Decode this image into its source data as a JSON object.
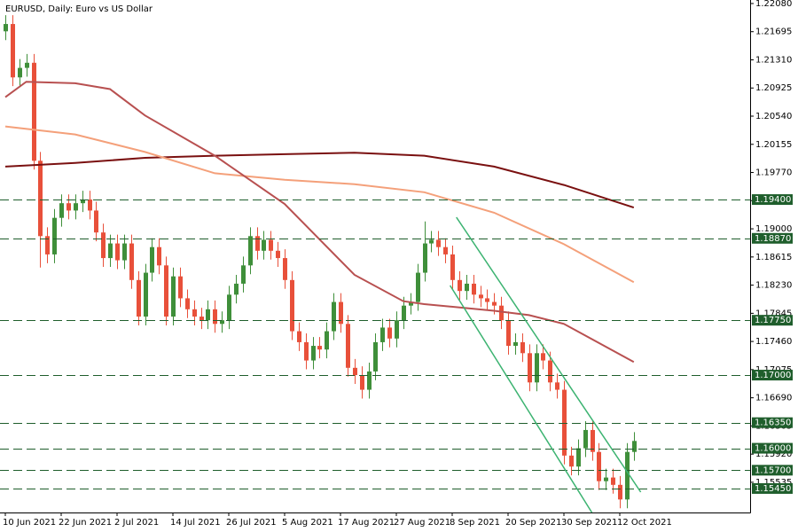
{
  "chart_data": {
    "type": "candlestick",
    "title": "EURUSD, Daily:  Euro vs US Dollar",
    "categories": [
      "10 Jun 2021",
      null,
      null,
      null,
      null,
      null,
      null,
      null,
      "22 Jun 2021",
      null,
      null,
      null,
      null,
      null,
      null,
      null,
      "2 Jul 2021",
      null,
      null,
      null,
      null,
      null,
      null,
      null,
      "14 Jul 2021",
      null,
      null,
      null,
      null,
      null,
      null,
      null,
      "26 Jul 2021",
      null,
      null,
      null,
      null,
      null,
      null,
      null,
      "5 Aug 2021",
      null,
      null,
      null,
      null,
      null,
      null,
      null,
      "17 Aug 2021",
      null,
      null,
      null,
      null,
      null,
      null,
      null,
      "27 Aug 2021",
      null,
      null,
      null,
      null,
      null,
      null,
      null,
      "8 Sep 2021",
      null,
      null,
      null,
      null,
      null,
      null,
      null,
      "20 Sep 2021",
      null,
      null,
      null,
      null,
      null,
      null,
      null,
      "30 Sep 2021",
      null,
      null,
      null,
      null,
      null,
      null,
      null,
      "12 Oct 2021",
      null,
      null
    ],
    "open": [
      1.217,
      1.218,
      1.2107,
      1.212,
      1.2127,
      1.1993,
      1.189,
      1.1865,
      1.1915,
      1.1935,
      1.1925,
      1.1935,
      1.194,
      1.1925,
      1.1895,
      1.186,
      1.188,
      1.1857,
      1.188,
      1.183,
      1.178,
      1.184,
      1.1875,
      1.185,
      1.178,
      1.1835,
      1.1805,
      1.179,
      1.178,
      1.1775,
      1.179,
      1.177,
      1.1775,
      1.181,
      1.1825,
      1.185,
      1.189,
      1.187,
      1.1885,
      1.187,
      1.186,
      1.183,
      1.176,
      1.1745,
      1.172,
      1.174,
      1.1735,
      1.176,
      1.18,
      1.177,
      1.171,
      1.17,
      1.168,
      1.1705,
      1.1745,
      1.1765,
      1.175,
      1.1775,
      1.1795,
      1.18,
      1.184,
      1.188,
      1.1885,
      1.1875,
      1.1865,
      1.183,
      1.1815,
      1.1825,
      1.181,
      1.1805,
      1.18,
      1.1795,
      1.1775,
      1.174,
      1.1745,
      1.173,
      1.169,
      1.173,
      1.172,
      1.169,
      1.168,
      1.159,
      1.1575,
      1.16,
      1.1625,
      1.1595,
      1.1555,
      1.156,
      1.155,
      1.153,
      1.1595
    ],
    "high": [
      1.2192,
      1.2192,
      1.2132,
      1.2139,
      1.2139,
      1.2005,
      1.1902,
      1.1927,
      1.1947,
      1.1947,
      1.1947,
      1.1952,
      1.1952,
      1.1937,
      1.1907,
      1.1892,
      1.1892,
      1.1892,
      1.1892,
      1.1842,
      1.1852,
      1.1887,
      1.1887,
      1.1862,
      1.1847,
      1.1847,
      1.1817,
      1.1802,
      1.1792,
      1.1802,
      1.1802,
      1.1787,
      1.1822,
      1.1837,
      1.1862,
      1.1902,
      1.1902,
      1.1897,
      1.1897,
      1.1882,
      1.1872,
      1.1842,
      1.1772,
      1.1757,
      1.1752,
      1.1752,
      1.1772,
      1.1812,
      1.1812,
      1.1782,
      1.1722,
      1.1712,
      1.1717,
      1.1757,
      1.1777,
      1.1777,
      1.1787,
      1.1807,
      1.1812,
      1.1852,
      1.191,
      1.1897,
      1.1897,
      1.1887,
      1.1877,
      1.1842,
      1.1837,
      1.1837,
      1.1822,
      1.1817,
      1.1812,
      1.1807,
      1.1787,
      1.1757,
      1.1757,
      1.1742,
      1.1742,
      1.1742,
      1.1732,
      1.1702,
      1.1692,
      1.1602,
      1.1612,
      1.1637,
      1.1637,
      1.1607,
      1.1572,
      1.1572,
      1.1562,
      1.1607,
      1.1622
    ],
    "low": [
      1.2158,
      1.2095,
      1.2095,
      1.2108,
      1.1981,
      1.1847,
      1.1853,
      1.1853,
      1.1903,
      1.1913,
      1.1913,
      1.1923,
      1.1913,
      1.1883,
      1.1848,
      1.1848,
      1.1845,
      1.1845,
      1.1818,
      1.1768,
      1.1768,
      1.1828,
      1.1838,
      1.1768,
      1.1768,
      1.1793,
      1.1778,
      1.1768,
      1.1763,
      1.1763,
      1.1758,
      1.1758,
      1.1763,
      1.1798,
      1.1813,
      1.1838,
      1.1858,
      1.1858,
      1.1858,
      1.1848,
      1.1818,
      1.1748,
      1.1733,
      1.1708,
      1.1708,
      1.1723,
      1.1723,
      1.1748,
      1.1758,
      1.1698,
      1.1688,
      1.1668,
      1.1668,
      1.1693,
      1.1733,
      1.1738,
      1.1738,
      1.1763,
      1.1783,
      1.1788,
      1.1828,
      1.1868,
      1.1863,
      1.1853,
      1.1818,
      1.1803,
      1.1803,
      1.1798,
      1.1793,
      1.1788,
      1.1783,
      1.1763,
      1.1728,
      1.1728,
      1.1718,
      1.1678,
      1.1678,
      1.1708,
      1.1678,
      1.1668,
      1.1578,
      1.1563,
      1.1563,
      1.1588,
      1.1583,
      1.1543,
      1.1543,
      1.1538,
      1.1518,
      1.1518,
      1.1583
    ],
    "close": [
      1.218,
      1.2107,
      1.212,
      1.2127,
      1.1993,
      1.189,
      1.1865,
      1.1915,
      1.1935,
      1.1925,
      1.1935,
      1.194,
      1.1925,
      1.1895,
      1.186,
      1.188,
      1.1857,
      1.188,
      1.183,
      1.178,
      1.184,
      1.1875,
      1.185,
      1.178,
      1.1835,
      1.1805,
      1.179,
      1.178,
      1.1775,
      1.179,
      1.177,
      1.1775,
      1.181,
      1.1825,
      1.185,
      1.189,
      1.187,
      1.1885,
      1.187,
      1.186,
      1.183,
      1.176,
      1.1745,
      1.172,
      1.174,
      1.1735,
      1.176,
      1.18,
      1.177,
      1.171,
      1.17,
      1.168,
      1.1705,
      1.1745,
      1.1765,
      1.175,
      1.1775,
      1.1795,
      1.18,
      1.184,
      1.188,
      1.1885,
      1.1875,
      1.1865,
      1.183,
      1.1815,
      1.1825,
      1.181,
      1.1805,
      1.18,
      1.1795,
      1.1775,
      1.174,
      1.1745,
      1.173,
      1.169,
      1.173,
      1.172,
      1.169,
      1.168,
      1.159,
      1.1575,
      1.16,
      1.1625,
      1.1595,
      1.1555,
      1.156,
      1.155,
      1.153,
      1.1595,
      1.161
    ],
    "up_color": "#3f8f3a",
    "down_color": "#e8503a",
    "ylim": [
      1.15122,
      1.22128
    ],
    "yticks": [
      {
        "value": 1.2208,
        "label": "1.22080"
      },
      {
        "value": 1.21695,
        "label": "1.21695"
      },
      {
        "value": 1.2131,
        "label": "1.21310"
      },
      {
        "value": 1.20925,
        "label": "1.20925"
      },
      {
        "value": 1.2054,
        "label": "1.20540"
      },
      {
        "value": 1.20155,
        "label": "1.20155"
      },
      {
        "value": 1.1977,
        "label": "1.19770"
      },
      {
        "value": 1.19385,
        "label": "1.19385"
      },
      {
        "value": 1.19,
        "label": "1.19000"
      },
      {
        "value": 1.18615,
        "label": "1.18615"
      },
      {
        "value": 1.1823,
        "label": "1.18230"
      },
      {
        "value": 1.17845,
        "label": "1.17845"
      },
      {
        "value": 1.1746,
        "label": "1.17460"
      },
      {
        "value": 1.17075,
        "label": "1.17075"
      },
      {
        "value": 1.1669,
        "label": "1.16690"
      },
      {
        "value": 1.16305,
        "label": "1.16305"
      },
      {
        "value": 1.1592,
        "label": "1.15920"
      },
      {
        "value": 1.15535,
        "label": "1.15535"
      }
    ],
    "moving_averages": [
      {
        "color": "#7a1010",
        "x": [
          0,
          10,
          20,
          30,
          40,
          50,
          60,
          70,
          80,
          90
        ],
        "values": [
          1.1985,
          1.199,
          1.1997,
          1.2,
          1.2002,
          1.2004,
          1.2,
          1.1985,
          1.196,
          1.1929
        ]
      },
      {
        "color": "#f4a07a",
        "x": [
          0,
          10,
          20,
          30,
          40,
          50,
          60,
          70,
          80,
          90
        ],
        "values": [
          1.204,
          1.2029,
          1.2005,
          1.1976,
          1.1967,
          1.1961,
          1.195,
          1.1922,
          1.1879,
          1.1827
        ]
      },
      {
        "color": "#b85050",
        "x": [
          0,
          3,
          10,
          15,
          20,
          30,
          40,
          50,
          57,
          60,
          70,
          75,
          80,
          90
        ],
        "values": [
          1.208,
          1.2101,
          1.2099,
          1.2091,
          1.2055,
          1.2,
          1.1934,
          1.1837,
          1.1801,
          1.1797,
          1.1788,
          1.1782,
          1.177,
          1.1718
        ]
      }
    ],
    "trendlines": [
      {
        "color": "#3cb371",
        "x": [
          64.6,
          91.0
        ],
        "values": [
          1.19158,
          1.15401
        ]
      },
      {
        "color": "#3cb371",
        "x": [
          63.7,
          84.0
        ],
        "values": [
          1.18225,
          1.15122
        ]
      }
    ],
    "level_color": "#1f5e2c",
    "levels": [
      {
        "value": 1.194,
        "label": "1.19400"
      },
      {
        "value": 1.1887,
        "label": "1.18870"
      },
      {
        "value": 1.1775,
        "label": "1.17750"
      },
      {
        "value": 1.17,
        "label": "1.17000"
      },
      {
        "value": 1.1635,
        "label": "1.16350"
      },
      {
        "value": 1.16,
        "label": "1.16000"
      },
      {
        "value": 1.157,
        "label": "1.15700"
      },
      {
        "value": 1.1545,
        "label": "1.15450"
      }
    ]
  }
}
